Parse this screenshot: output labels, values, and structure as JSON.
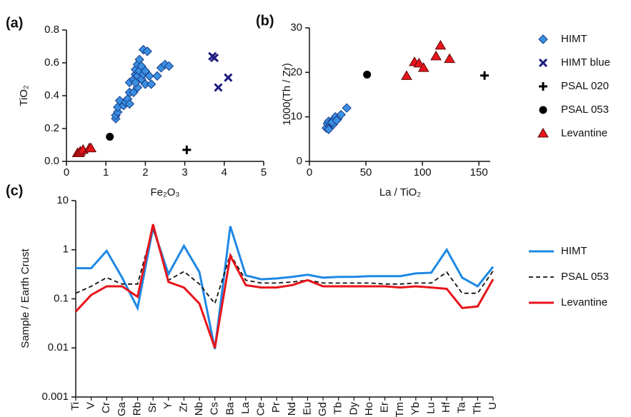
{
  "chart_data": [
    {
      "type": "scatter",
      "label": "(a)",
      "x_label": "Fe₂O₃",
      "y_label": "TiO₂",
      "xlim": [
        0,
        5
      ],
      "ylim": [
        0,
        0.8
      ],
      "xticks": [
        0,
        1,
        2,
        3,
        4,
        5
      ],
      "yticks": [
        {
          "value": 0,
          "label": "0.0"
        },
        0.2,
        0.4,
        0.6,
        0.8
      ],
      "series": [
        {
          "name": "HIMT",
          "color": "#3b8fe2",
          "marker": "diamond",
          "x": [
            1.25,
            1.25,
            1.3,
            1.3,
            1.35,
            1.45,
            1.5,
            1.55,
            1.6,
            1.6,
            1.7,
            1.6,
            1.7,
            1.75,
            1.75,
            1.8,
            1.8,
            1.85,
            1.85,
            1.9,
            1.9,
            1.95,
            1.95,
            2.0,
            2.05,
            2.0,
            2.1,
            2.15,
            2.3,
            2.4,
            2.5,
            2.6,
            1.8,
            1.75
          ],
          "values": [
            0.26,
            0.28,
            0.3,
            0.33,
            0.37,
            0.34,
            0.36,
            0.38,
            0.35,
            0.42,
            0.42,
            0.48,
            0.5,
            0.53,
            0.56,
            0.52,
            0.59,
            0.62,
            0.55,
            0.5,
            0.58,
            0.53,
            0.68,
            0.47,
            0.67,
            0.55,
            0.52,
            0.47,
            0.52,
            0.57,
            0.59,
            0.58,
            0.45,
            0.48
          ]
        },
        {
          "name": "HIMT blue",
          "color": "#1c1c7e",
          "marker": "x",
          "x": [
            3.7,
            3.75,
            3.85,
            4.1
          ],
          "values": [
            0.64,
            0.63,
            0.45,
            0.51
          ]
        },
        {
          "name": "PSAL 020",
          "color": "#000000",
          "marker": "plus",
          "x": [
            3.05
          ],
          "values": [
            0.07
          ]
        },
        {
          "name": "PSAL 053",
          "color": "#000000",
          "marker": "circle",
          "x": [
            1.1
          ],
          "values": [
            0.15
          ]
        },
        {
          "name": "Levantine",
          "color": "#e8141b",
          "marker": "triangle",
          "x": [
            0.28,
            0.32,
            0.35,
            0.42,
            0.58,
            0.62
          ],
          "values": [
            0.05,
            0.05,
            0.06,
            0.07,
            0.08,
            0.08
          ]
        }
      ]
    },
    {
      "type": "scatter",
      "label": "(b)",
      "x_label": "La / TiO₂",
      "y_label": "1000(Th / Zr)",
      "xlim": [
        0,
        160
      ],
      "ylim": [
        0,
        30
      ],
      "xticks": [
        0,
        50,
        100,
        150
      ],
      "yticks": [
        0,
        10,
        20,
        30
      ],
      "series": [
        {
          "name": "HIMT",
          "color": "#3b8fe2",
          "marker": "diamond",
          "x": [
            15,
            16,
            17,
            18,
            19,
            20,
            21,
            22,
            23,
            25,
            28,
            33,
            17,
            20,
            24
          ],
          "values": [
            7.5,
            8.5,
            9,
            8,
            7.8,
            9,
            8.3,
            9.5,
            10,
            9.5,
            10.5,
            12,
            7.2,
            8.8,
            9.2
          ]
        },
        {
          "name": "PSAL 020",
          "color": "#000000",
          "marker": "plus",
          "x": [
            155
          ],
          "values": [
            19.3
          ]
        },
        {
          "name": "PSAL 053",
          "color": "#000000",
          "marker": "circle",
          "x": [
            51
          ],
          "values": [
            19.5
          ]
        },
        {
          "name": "Levantine",
          "color": "#e8141b",
          "marker": "triangle",
          "x": [
            86,
            93,
            97,
            101,
            112,
            116,
            124
          ],
          "values": [
            19.2,
            22.3,
            22,
            21,
            23.6,
            26,
            23
          ]
        }
      ]
    },
    {
      "type": "line",
      "label": "(c)",
      "y_label": "Sample / Earth Crust",
      "log_scale": true,
      "ylim": [
        0.001,
        10
      ],
      "yticks": [
        0.001,
        0.01,
        0.1,
        1,
        10
      ],
      "categories": [
        "Ti",
        "V",
        "Cr",
        "Ga",
        "Rb",
        "Sr",
        "Y",
        "Zr",
        "Nb",
        "Cs",
        "Ba",
        "La",
        "Ce",
        "Pr",
        "Nd",
        "Eu",
        "Gd",
        "Tb",
        "Dy",
        "Ho",
        "Er",
        "Tm",
        "Yb",
        "Lu",
        "Hf",
        "Ta",
        "Th",
        "U"
      ],
      "series": [
        {
          "name": "HIMT",
          "color": "#1e88e5",
          "dashed": false,
          "values": [
            0.42,
            0.42,
            0.95,
            0.27,
            0.065,
            2.8,
            0.32,
            1.2,
            0.35,
            0.0095,
            3.0,
            0.3,
            0.25,
            0.26,
            0.28,
            0.31,
            0.27,
            0.28,
            0.28,
            0.29,
            0.29,
            0.29,
            0.33,
            0.34,
            1.0,
            0.27,
            0.18,
            0.45
          ]
        },
        {
          "name": "PSAL 053",
          "color": "#111111",
          "dashed": true,
          "values": [
            0.13,
            0.18,
            0.27,
            0.2,
            0.2,
            2.8,
            0.24,
            0.36,
            0.2,
            0.08,
            0.8,
            0.24,
            0.21,
            0.21,
            0.22,
            0.24,
            0.21,
            0.21,
            0.21,
            0.21,
            0.2,
            0.2,
            0.21,
            0.21,
            0.35,
            0.13,
            0.13,
            0.37
          ]
        },
        {
          "name": "Levantine",
          "color": "#e8141b",
          "dashed": false,
          "values": [
            0.055,
            0.12,
            0.18,
            0.18,
            0.11,
            3.3,
            0.22,
            0.17,
            0.08,
            0.01,
            0.75,
            0.19,
            0.17,
            0.17,
            0.19,
            0.24,
            0.18,
            0.18,
            0.18,
            0.18,
            0.18,
            0.17,
            0.18,
            0.17,
            0.16,
            0.065,
            0.07,
            0.25
          ]
        }
      ]
    }
  ]
}
